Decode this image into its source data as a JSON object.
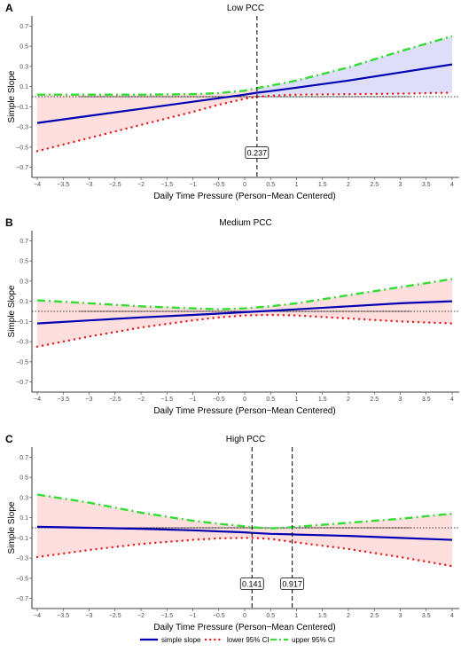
{
  "chart_data": [
    {
      "type": "line",
      "letter": "A",
      "title": "Low PCC",
      "xlabel": "Daily Time Pressure (Person−Mean Centered)",
      "ylabel": "Simple Slope",
      "xlim": [
        -4,
        4
      ],
      "ylim": [
        -0.8,
        0.8
      ],
      "x_ticks": [
        -4,
        -3.5,
        -3,
        -2.5,
        -2,
        -1.5,
        -1,
        -0.5,
        0,
        0.5,
        1,
        1.5,
        2,
        2.5,
        3,
        3.5,
        4
      ],
      "x_tick_labels": [
        "−4",
        "−3.5",
        "−3",
        "−2.5",
        "−2",
        "−1.5",
        "−1",
        "−0.5",
        "0",
        "0.5",
        "1",
        "1.5",
        "2",
        "2.5",
        "3",
        "3.5",
        "4"
      ],
      "y_ticks": [
        -0.7,
        -0.5,
        -0.3,
        -0.1,
        0.1,
        0.3,
        0.5,
        0.7
      ],
      "y_tick_labels": [
        "−0.7",
        "−0.5",
        "−0.3",
        "−0.1",
        "0.1",
        "0.3",
        "0.5",
        "0.7"
      ],
      "x": [
        -4,
        -3,
        -2,
        -1,
        -0.5,
        0,
        0.237,
        0.5,
        1,
        2,
        3,
        4
      ],
      "series": [
        {
          "name": "simple slope",
          "values": [
            -0.26,
            -0.19,
            -0.12,
            -0.05,
            -0.015,
            0.02,
            0.04,
            0.055,
            0.09,
            0.16,
            0.24,
            0.32
          ]
        },
        {
          "name": "lower 95% CI",
          "values": [
            -0.54,
            -0.41,
            -0.28,
            -0.15,
            -0.08,
            -0.02,
            0.0,
            0.01,
            0.02,
            0.025,
            0.03,
            0.04
          ]
        },
        {
          "name": "upper 95% CI",
          "values": [
            0.02,
            0.02,
            0.02,
            0.025,
            0.035,
            0.06,
            0.085,
            0.11,
            0.16,
            0.29,
            0.45,
            0.6
          ]
        }
      ],
      "johnson_neyman": [
        {
          "x": 0.237,
          "label": "0.237"
        }
      ],
      "zero_line": "dotted",
      "grid": false
    },
    {
      "type": "line",
      "letter": "B",
      "title": "Medium PCC",
      "xlabel": "Daily Time Pressure (Person−Mean Centered)",
      "ylabel": "Simple Slope",
      "xlim": [
        -4,
        4
      ],
      "ylim": [
        -0.8,
        0.8
      ],
      "x_ticks": [
        -4,
        -3.5,
        -3,
        -2.5,
        -2,
        -1.5,
        -1,
        -0.5,
        0,
        0.5,
        1,
        1.5,
        2,
        2.5,
        3,
        3.5,
        4
      ],
      "x_tick_labels": [
        "−4",
        "−3.5",
        "−3",
        "−2.5",
        "−2",
        "−1.5",
        "−1",
        "−0.5",
        "0",
        "0.5",
        "1",
        "1.5",
        "2",
        "2.5",
        "3",
        "3.5",
        "4"
      ],
      "y_ticks": [
        -0.7,
        -0.5,
        -0.3,
        -0.1,
        0.1,
        0.3,
        0.5,
        0.7
      ],
      "y_tick_labels": [
        "−0.7",
        "−0.5",
        "−0.3",
        "−0.1",
        "0.1",
        "0.3",
        "0.5",
        "0.7"
      ],
      "x": [
        -4,
        -3,
        -2,
        -1,
        -0.5,
        0,
        0.5,
        1,
        2,
        3,
        4
      ],
      "series": [
        {
          "name": "simple slope",
          "values": [
            -0.12,
            -0.09,
            -0.06,
            -0.035,
            -0.022,
            -0.008,
            0.005,
            0.02,
            0.05,
            0.08,
            0.1
          ]
        },
        {
          "name": "lower 95% CI",
          "values": [
            -0.35,
            -0.25,
            -0.16,
            -0.09,
            -0.06,
            -0.04,
            -0.035,
            -0.04,
            -0.07,
            -0.1,
            -0.12
          ]
        },
        {
          "name": "upper 95% CI",
          "values": [
            0.11,
            0.08,
            0.05,
            0.03,
            0.02,
            0.03,
            0.05,
            0.08,
            0.16,
            0.24,
            0.32
          ]
        }
      ],
      "johnson_neyman": [],
      "zero_line": "dotted",
      "grid": false
    },
    {
      "type": "line",
      "letter": "C",
      "title": "High PCC",
      "xlabel": "Daily Time Pressure (Person−Mean Centered)",
      "ylabel": "Simple Slope",
      "xlim": [
        -4,
        4
      ],
      "ylim": [
        -0.8,
        0.8
      ],
      "x_ticks": [
        -4,
        -3.5,
        -3,
        -2.5,
        -2,
        -1.5,
        -1,
        -0.5,
        0,
        0.5,
        1,
        1.5,
        2,
        2.5,
        3,
        3.5,
        4
      ],
      "x_tick_labels": [
        "−4",
        "−3.5",
        "−3",
        "−2.5",
        "−2",
        "−1.5",
        "−1",
        "−0.5",
        "0",
        "0.5",
        "1",
        "1.5",
        "2",
        "2.5",
        "3",
        "3.5",
        "4"
      ],
      "y_ticks": [
        -0.7,
        -0.5,
        -0.3,
        -0.1,
        0.1,
        0.3,
        0.5,
        0.7
      ],
      "y_tick_labels": [
        "−0.7",
        "−0.5",
        "−0.3",
        "−0.1",
        "0.1",
        "0.3",
        "0.5",
        "0.7"
      ],
      "x": [
        -4,
        -3,
        -2,
        -1,
        -0.5,
        0,
        0.141,
        0.5,
        0.917,
        1,
        2,
        3,
        4
      ],
      "series": [
        {
          "name": "simple slope",
          "values": [
            0.01,
            0.0,
            -0.01,
            -0.025,
            -0.035,
            -0.045,
            -0.05,
            -0.06,
            -0.065,
            -0.067,
            -0.08,
            -0.1,
            -0.12
          ]
        },
        {
          "name": "lower 95% CI",
          "values": [
            -0.29,
            -0.22,
            -0.16,
            -0.12,
            -0.105,
            -0.1,
            -0.1,
            -0.11,
            -0.14,
            -0.145,
            -0.21,
            -0.29,
            -0.38
          ]
        },
        {
          "name": "upper 95% CI",
          "values": [
            0.33,
            0.25,
            0.15,
            0.07,
            0.04,
            0.015,
            0.005,
            -0.005,
            0.005,
            0.01,
            0.05,
            0.09,
            0.14
          ]
        }
      ],
      "johnson_neyman": [
        {
          "x": 0.141,
          "label": "0.141"
        },
        {
          "x": 0.917,
          "label": "0.917"
        }
      ],
      "zero_line": "dotted",
      "grid": false
    }
  ],
  "legend": {
    "placement": "bottom",
    "items": [
      {
        "label": "simple slope",
        "style": "solid",
        "color": "#0000b3"
      },
      {
        "label": "lower 95% CI",
        "style": "dotted",
        "color": "#e41a1c"
      },
      {
        "label": "upper 95% CI",
        "style": "dashdot",
        "color": "#33dd33"
      }
    ]
  },
  "colors": {
    "slope": "#0000b3",
    "lower": "#e41a1c",
    "upper": "#33dd33",
    "band_negative": "#ffdede",
    "band_positive": "#dedefa"
  }
}
